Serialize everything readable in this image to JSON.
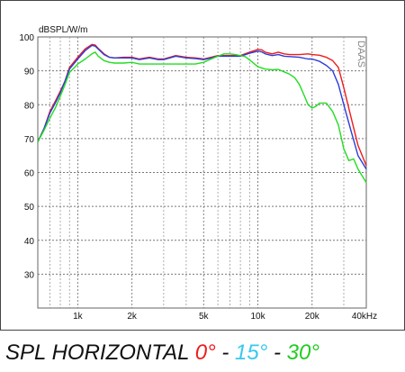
{
  "chart_data": {
    "type": "line",
    "unit_label": "dBSPL/W/m",
    "watermark": "DAAS",
    "x_scale": "log",
    "xlim": [
      600,
      40000
    ],
    "ylim": [
      20,
      100
    ],
    "x_ticks": [
      {
        "value": 1000,
        "label": "1k"
      },
      {
        "value": 2000,
        "label": "2k"
      },
      {
        "value": 5000,
        "label": "5k"
      },
      {
        "value": 10000,
        "label": "10k"
      },
      {
        "value": 20000,
        "label": "20k"
      },
      {
        "value": 40000,
        "label": "40kHz"
      }
    ],
    "x_minor_grid": [
      700,
      800,
      900,
      3000,
      4000,
      6000,
      7000,
      8000,
      9000,
      30000
    ],
    "y_ticks": [
      30,
      40,
      50,
      60,
      70,
      80,
      90,
      100
    ],
    "grid": true,
    "series": [
      {
        "name": "0°",
        "color": "#ee1c1c",
        "x": [
          600,
          650,
          700,
          750,
          800,
          850,
          900,
          1000,
          1100,
          1200,
          1250,
          1300,
          1400,
          1500,
          1600,
          1800,
          2000,
          2200,
          2500,
          2800,
          3000,
          3500,
          4000,
          4500,
          5000,
          5500,
          6000,
          7000,
          8000,
          9000,
          10000,
          10500,
          11000,
          12000,
          13000,
          14000,
          15000,
          17000,
          19000,
          20000,
          22000,
          24000,
          26000,
          28000,
          30000,
          33000,
          36000,
          40000
        ],
        "values": [
          69,
          73,
          78,
          81,
          84,
          87,
          91,
          94,
          96.5,
          97.8,
          97.6,
          96.6,
          95,
          94,
          93.8,
          94,
          94,
          93.5,
          94,
          93.5,
          93.5,
          94.5,
          94,
          93.8,
          93.5,
          94,
          94.5,
          94.5,
          94.5,
          95.5,
          96.3,
          96.2,
          95.5,
          95,
          95.5,
          95,
          94.8,
          94.8,
          95,
          94.8,
          94.6,
          94,
          93,
          91,
          85,
          76,
          68,
          62
        ]
      },
      {
        "name": "15°",
        "color": "#2c3cd8",
        "x": [
          600,
          650,
          700,
          750,
          800,
          850,
          900,
          1000,
          1100,
          1200,
          1250,
          1300,
          1400,
          1500,
          1600,
          1800,
          2000,
          2200,
          2500,
          2800,
          3000,
          3500,
          4000,
          4500,
          5000,
          5500,
          6000,
          7000,
          8000,
          9000,
          10000,
          10500,
          11000,
          12000,
          13000,
          14000,
          15000,
          17000,
          19000,
          20000,
          22000,
          24000,
          26000,
          28000,
          30000,
          33000,
          36000,
          40000
        ],
        "values": [
          69,
          73,
          77.5,
          80.5,
          83.5,
          87,
          90.5,
          93.5,
          96,
          97.5,
          97.3,
          96.4,
          94.8,
          94,
          93.8,
          93.8,
          93.8,
          93.3,
          93.8,
          93.3,
          93.3,
          94.3,
          93.8,
          93.6,
          93.3,
          93.8,
          94.3,
          94.3,
          94.3,
          95.2,
          95.8,
          95.6,
          95,
          94.5,
          94.8,
          94.3,
          94.2,
          94,
          93.5,
          93.5,
          92.8,
          91.6,
          90,
          86,
          80,
          72,
          65,
          61
        ]
      },
      {
        "name": "30°",
        "color": "#22dd22",
        "x": [
          600,
          650,
          700,
          750,
          800,
          850,
          900,
          1000,
          1100,
          1200,
          1250,
          1300,
          1400,
          1500,
          1600,
          1800,
          2000,
          2200,
          2500,
          2800,
          3000,
          3500,
          4000,
          4500,
          5000,
          5500,
          6000,
          6500,
          7000,
          7500,
          8000,
          8500,
          9000,
          10000,
          11000,
          12000,
          13000,
          14000,
          15000,
          16000,
          17000,
          18000,
          19000,
          20000,
          21000,
          22000,
          24000,
          26000,
          28000,
          30000,
          32000,
          34000,
          36000,
          40000
        ],
        "values": [
          69,
          72.5,
          76,
          79,
          82.5,
          86,
          89.5,
          92,
          93.5,
          95,
          95.5,
          94.3,
          93,
          92.5,
          92.3,
          92.3,
          92.5,
          92,
          92,
          92,
          92,
          92,
          92,
          92,
          92.5,
          93.5,
          94.3,
          95,
          95,
          94.8,
          94.5,
          94.2,
          93.2,
          91.2,
          90.5,
          90.3,
          90.4,
          89.7,
          89,
          88,
          86,
          83,
          80,
          79,
          79.5,
          80.5,
          80.5,
          78,
          74,
          67,
          63.5,
          64,
          61,
          57
        ]
      }
    ]
  },
  "caption": {
    "title": "SPL HORIZONTAL",
    "angle_0": "0°",
    "sep_1": " - ",
    "angle_15": "15°",
    "sep_2": " - ",
    "angle_30": "30°",
    "colors": {
      "text": "#111111",
      "angle_0": "#ee1c1c",
      "angle_15": "#38c8ee",
      "angle_30": "#22cc22"
    }
  }
}
